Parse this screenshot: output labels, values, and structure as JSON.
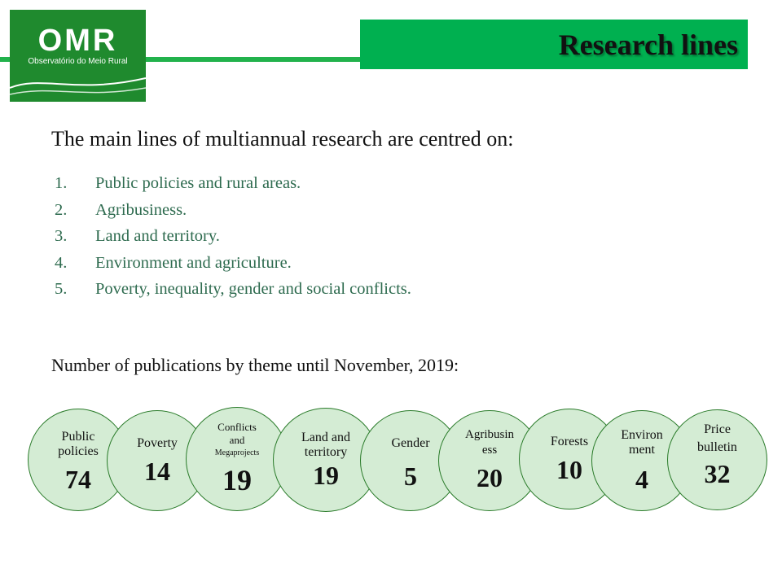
{
  "logo": {
    "title": "OMR",
    "subtitle": "Observatório do Meio Rural"
  },
  "header": {
    "title": "Research lines"
  },
  "intro": "The main lines of multiannual research are centred on:",
  "lines": [
    {
      "num": "1.",
      "text": "Public policies and rural areas."
    },
    {
      "num": "2.",
      "text": "Agribusiness."
    },
    {
      "num": "3.",
      "text": "Land and territory."
    },
    {
      "num": "4.",
      "text": "Environment and agriculture."
    },
    {
      "num": "5.",
      "text": "Poverty, inequality, gender and social conflicts."
    }
  ],
  "publications_heading": "Number of publications by theme until November, 2019:",
  "themes": [
    {
      "label_1": "Public",
      "label_2": "policies",
      "count": "74"
    },
    {
      "label_1": "Poverty",
      "count": "14"
    },
    {
      "label_1": "Conflicts",
      "label_2": "and",
      "label_3": "Megaprojects",
      "count": "19"
    },
    {
      "label_1": "Land and",
      "label_2": "territory",
      "count": "19"
    },
    {
      "label_1": "Gender",
      "count": "5"
    },
    {
      "label_1": "Agribusin",
      "label_2": "ess",
      "count": "20"
    },
    {
      "label_1": "Forests",
      "count": "10"
    },
    {
      "label_1": "Environ",
      "label_2": "ment",
      "count": "4"
    },
    {
      "label_1": "Price",
      "label_2": "bulletin",
      "count": "32"
    }
  ],
  "colors": {
    "header_green": "#00b050",
    "logo_green": "#1f8a2e",
    "circle_fill": "#d4ecd4",
    "circle_border": "#2a7b2a",
    "list_text": "#2e6b4f"
  }
}
